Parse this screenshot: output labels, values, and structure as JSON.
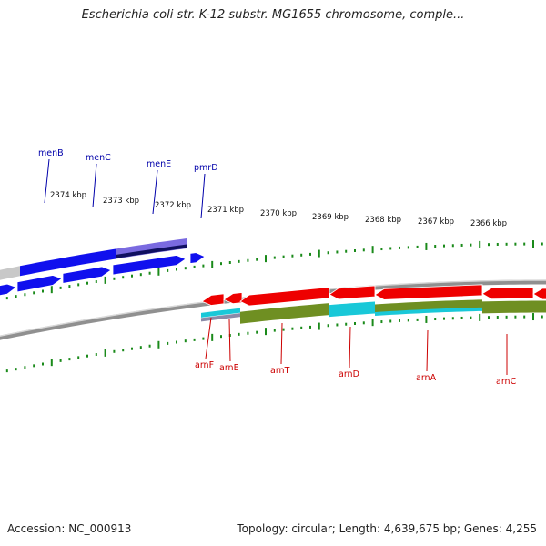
{
  "header": {
    "title": "Escherichia coli str. K-12 substr. MG1655 chromosome, comple..."
  },
  "footer": {
    "accession": "Accession: NC_000913",
    "summary": "Topology: circular; Length: 4,639,675 bp; Genes: 4,255"
  },
  "colors": {
    "forward_cds": "#1010ee",
    "reverse_cds": "#ee0000",
    "forward_label": "#0000aa",
    "reverse_label": "#cc0000",
    "tick": "#1a8a1a",
    "backbone": "#909090",
    "cyan_feature": "#19c8d8",
    "olive_feature": "#6f8f22"
  },
  "scale_labels": [
    "2374 kbp",
    "2373 kbp",
    "2372 kbp",
    "2371 kbp",
    "2370 kbp",
    "2369 kbp",
    "2368 kbp",
    "2367 kbp",
    "2366 kbp"
  ],
  "forward_genes": [
    {
      "label": "menB"
    },
    {
      "label": "menC"
    },
    {
      "label": "menE"
    },
    {
      "label": "pmrD"
    }
  ],
  "reverse_genes": [
    {
      "label": "arnF"
    },
    {
      "label": "arnE"
    },
    {
      "label": "arnT"
    },
    {
      "label": "arnD"
    },
    {
      "label": "arnA"
    },
    {
      "label": "arnC"
    }
  ]
}
